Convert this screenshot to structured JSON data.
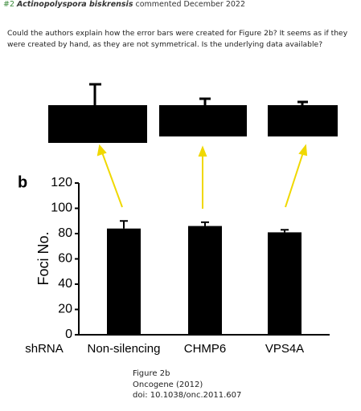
{
  "header": {
    "number": "#2",
    "author": "Actinopolyspora biskrensis",
    "action": "commented December 2022"
  },
  "comment": "Could the authors explain how the error bars were created for Figure 2b? It seems as if they were created by hand, as they are not symmetrical. Is the underlying data available?",
  "chart_data": {
    "type": "bar",
    "panel_label": "b",
    "ylabel": "Foci No.",
    "xlabel": "shRNA",
    "categories": [
      "Non-silencing",
      "CHMP6",
      "VPS4A"
    ],
    "values": [
      84,
      86,
      81
    ],
    "errors": [
      6,
      3,
      2
    ],
    "color": "#000000",
    "ylim": [
      0,
      120
    ],
    "yticks": [
      0,
      20,
      40,
      60,
      80,
      100,
      120
    ]
  },
  "caption": [
    "Figure 2b",
    "Oncogene (2012)",
    "doi: 10.1038/onc.2011.607"
  ]
}
